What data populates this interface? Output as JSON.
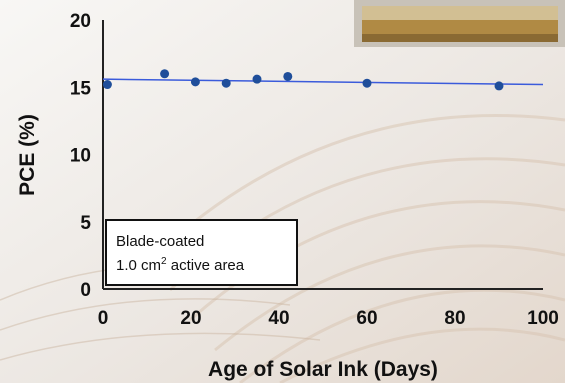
{
  "chart_data": {
    "type": "scatter",
    "xlabel": "Age of Solar Ink (Days)",
    "ylabel": "PCE (%)",
    "xlim": [
      0,
      100
    ],
    "ylim": [
      0,
      20
    ],
    "x_ticks": [
      0,
      20,
      40,
      60,
      80,
      100
    ],
    "y_ticks": [
      0,
      5,
      10,
      15,
      20
    ],
    "x_tick_labels": [
      "0",
      "20",
      "40",
      "60",
      "80",
      "100"
    ],
    "y_tick_labels": [
      "0",
      "5",
      "10",
      "15",
      "20"
    ],
    "grid": false,
    "series": [
      {
        "x": [
          1,
          14,
          21,
          28,
          35,
          42,
          60,
          90
        ],
        "y": [
          15.2,
          16.0,
          15.4,
          15.3,
          15.6,
          15.8,
          15.3,
          15.1
        ],
        "color": "#1f4e9a"
      }
    ],
    "trendline": {
      "x": [
        0,
        100
      ],
      "y": [
        15.6,
        15.2
      ],
      "color": "#3b5bdb"
    },
    "annotation": {
      "line1": "Blade-coated",
      "line2_value": "1.0 cm",
      "line2_superscript": "2",
      "line2_suffix": " active area"
    }
  }
}
